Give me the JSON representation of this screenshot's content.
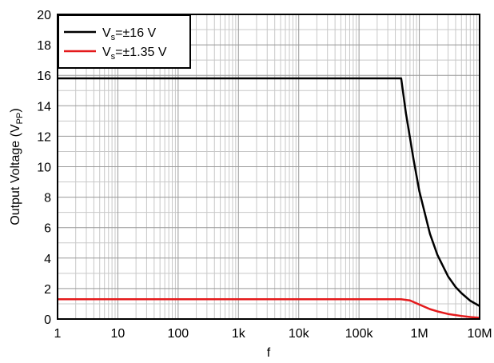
{
  "chart_data": {
    "type": "line",
    "title": "",
    "xlabel": "f",
    "ylabel": "Output Voltage (V",
    "ylabel_sub": "PP",
    "ylabel_end": ")",
    "xscale": "log",
    "xlim": [
      1,
      10000000
    ],
    "ylim": [
      0,
      20
    ],
    "grid": true,
    "legend_position": "top-left",
    "x_ticks": [
      1,
      10,
      100,
      1000,
      10000,
      100000,
      1000000,
      10000000
    ],
    "x_tick_labels": [
      "1",
      "10",
      "100",
      "1k",
      "10k",
      "100k",
      "1M",
      "10M"
    ],
    "y_ticks": [
      0,
      2,
      4,
      6,
      8,
      10,
      12,
      14,
      16,
      18,
      20
    ],
    "y_tick_labels": [
      "0",
      "2",
      "4",
      "6",
      "8",
      "10",
      "12",
      "14",
      "16",
      "18",
      "20"
    ],
    "series": [
      {
        "legend_main": "V",
        "legend_sub": "s",
        "legend_rest": "=±16 V",
        "color": "#000000",
        "points": [
          [
            1,
            15.8
          ],
          [
            10,
            15.8
          ],
          [
            100,
            15.8
          ],
          [
            1000,
            15.8
          ],
          [
            10000,
            15.8
          ],
          [
            100000,
            15.8
          ],
          [
            500000,
            15.8
          ],
          [
            600000,
            13.5
          ],
          [
            700000,
            11.9
          ],
          [
            800000,
            10.5
          ],
          [
            1000000,
            8.4
          ],
          [
            1500000,
            5.6
          ],
          [
            2000000,
            4.2
          ],
          [
            3000000,
            2.8
          ],
          [
            4000000,
            2.1
          ],
          [
            5000000,
            1.7
          ],
          [
            7000000,
            1.2
          ],
          [
            10000000,
            0.85
          ]
        ]
      },
      {
        "legend_main": "V",
        "legend_sub": "s",
        "legend_rest": "=±1.35 V",
        "color": "#e41a1c",
        "points": [
          [
            1,
            1.3
          ],
          [
            10,
            1.3
          ],
          [
            100,
            1.3
          ],
          [
            1000,
            1.3
          ],
          [
            10000,
            1.3
          ],
          [
            100000,
            1.3
          ],
          [
            500000,
            1.3
          ],
          [
            700000,
            1.22
          ],
          [
            1000000,
            0.95
          ],
          [
            1500000,
            0.65
          ],
          [
            2000000,
            0.5
          ],
          [
            3000000,
            0.33
          ],
          [
            5000000,
            0.2
          ],
          [
            7000000,
            0.13
          ],
          [
            10000000,
            0.08
          ]
        ]
      }
    ]
  }
}
